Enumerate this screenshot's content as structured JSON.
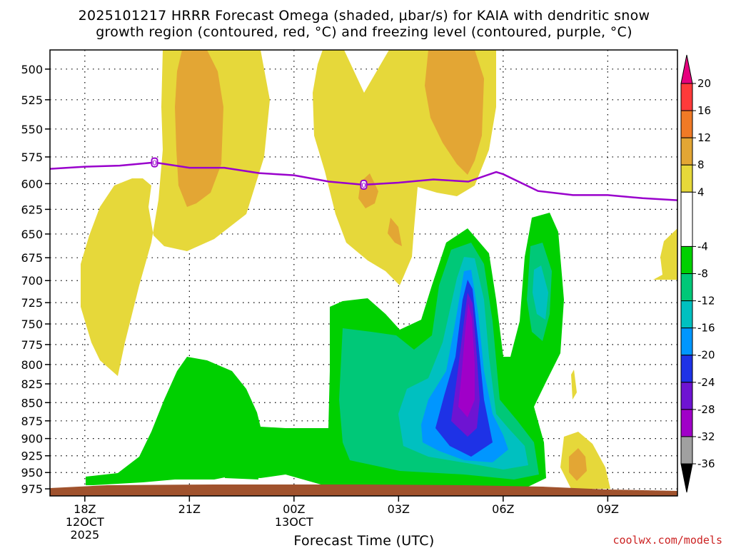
{
  "title_line1": "2025101217 HRRR Forecast Omega (shaded, μbar/s) for KAIA with dendritic snow",
  "title_line2": "growth region (contoured, red, °C) and freezing level (contoured, purple, °C)",
  "xlabel": "Forecast Time (UTC)",
  "credit": "coolwx.com/models",
  "colors": {
    "ground": "#a0522d",
    "freezing_line": "#9900cc",
    "omega_4_8": "#e6d83a",
    "omega_8_12": "#e3a634",
    "neg_4_8": "#00d000",
    "neg_8_12": "#00c878",
    "neg_12_16": "#00c0c0",
    "neg_16_20": "#0096ff",
    "neg_20_24": "#1e32e6",
    "neg_24_28": "#6e14d2",
    "neg_28_32": "#a000c8"
  },
  "chart_data": {
    "type": "heatmap",
    "title": "2025101217 HRRR Forecast Omega (shaded, μbar/s) for KAIA with dendritic snow growth region (contoured, red, °C) and freezing level (contoured, purple, °C)",
    "xlabel": "Forecast Time (UTC)",
    "ylabel": "",
    "xlim": [
      -1,
      17
    ],
    "ylim_pressure_hPa": [
      986,
      485
    ],
    "y_axis": "pressure (hPa), reversed",
    "x_ticks": [
      {
        "hour": 0,
        "label": "18Z",
        "date": "12OCT",
        "year": "2025"
      },
      {
        "hour": 3,
        "label": "21Z"
      },
      {
        "hour": 6,
        "label": "00Z",
        "date": "13OCT"
      },
      {
        "hour": 9,
        "label": "03Z"
      },
      {
        "hour": 12,
        "label": "06Z"
      },
      {
        "hour": 15,
        "label": "09Z"
      }
    ],
    "y_ticks": [
      500,
      525,
      550,
      575,
      600,
      625,
      650,
      675,
      700,
      725,
      750,
      775,
      800,
      825,
      850,
      875,
      900,
      925,
      950,
      975
    ],
    "grid": true,
    "colorbar": {
      "position": "right",
      "ticks": [
        20,
        16,
        12,
        8,
        4,
        -4,
        -8,
        -12,
        -16,
        -20,
        -24,
        -28,
        -32,
        -36
      ],
      "bands": [
        {
          "from": 16,
          "to": 20,
          "color": "#ff3a3a"
        },
        {
          "from": 12,
          "to": 16,
          "color": "#f07a26"
        },
        {
          "from": 8,
          "to": 12,
          "color": "#e3a634"
        },
        {
          "from": 4,
          "to": 8,
          "color": "#e6d83a"
        },
        {
          "from": -4,
          "to": 4,
          "color": "#ffffff"
        },
        {
          "from": -8,
          "to": -4,
          "color": "#00d000"
        },
        {
          "from": -12,
          "to": -8,
          "color": "#00c878"
        },
        {
          "from": -16,
          "to": -12,
          "color": "#00c0c0"
        },
        {
          "from": -20,
          "to": -16,
          "color": "#0096ff"
        },
        {
          "from": -24,
          "to": -20,
          "color": "#1e32e6"
        },
        {
          "from": -28,
          "to": -24,
          "color": "#6e14d2"
        },
        {
          "from": -32,
          "to": -28,
          "color": "#a000c8"
        },
        {
          "from": -36,
          "to": -32,
          "color": "#a0a0a0"
        }
      ],
      "over_color": "#e6007e",
      "under_color": "#000000"
    },
    "freezing_level": {
      "label": "0",
      "hours": [
        -1,
        0,
        1,
        2,
        3,
        4,
        5,
        6,
        7,
        8,
        9,
        10,
        11,
        11.8,
        12,
        13,
        14,
        15,
        16,
        17
      ],
      "pressure": [
        586,
        584,
        583,
        580,
        585,
        585,
        590,
        592,
        598,
        601,
        599,
        596,
        598,
        589,
        591,
        607,
        611,
        611,
        614,
        616
      ],
      "label_at_hours": [
        2,
        8
      ]
    },
    "omega_regions": [
      {
        "level": "4 to 8",
        "description": "upward motion, upper levels ~20Z-22Z",
        "hours": [
          -0.5,
          5
        ],
        "pressure_range": [
          485,
          810
        ]
      },
      {
        "level": "8 to 12",
        "description": "maximum near 21Z-22Z",
        "hours": [
          3,
          4
        ],
        "pressure_range": [
          485,
          615
        ]
      },
      {
        "level": "4 to 8",
        "description": "upward motion ~01Z-06Z",
        "hours": [
          6.5,
          11
        ],
        "pressure_range": [
          485,
          700
        ]
      },
      {
        "level": "8 to 12",
        "description": "maximum near 04Z-05Z",
        "hours": [
          10,
          11
        ],
        "pressure_range": [
          485,
          590
        ]
      },
      {
        "level": "-4 to -32",
        "description": "strong sinking motion core near 05Z",
        "hours": [
          9,
          12
        ],
        "pressure_range": [
          650,
          935
        ]
      },
      {
        "level": "-4 to -8",
        "description": "low-level sinking 20Z-07Z",
        "hours": [
          0,
          13
        ],
        "pressure_range": [
          790,
          980
        ]
      }
    ]
  }
}
